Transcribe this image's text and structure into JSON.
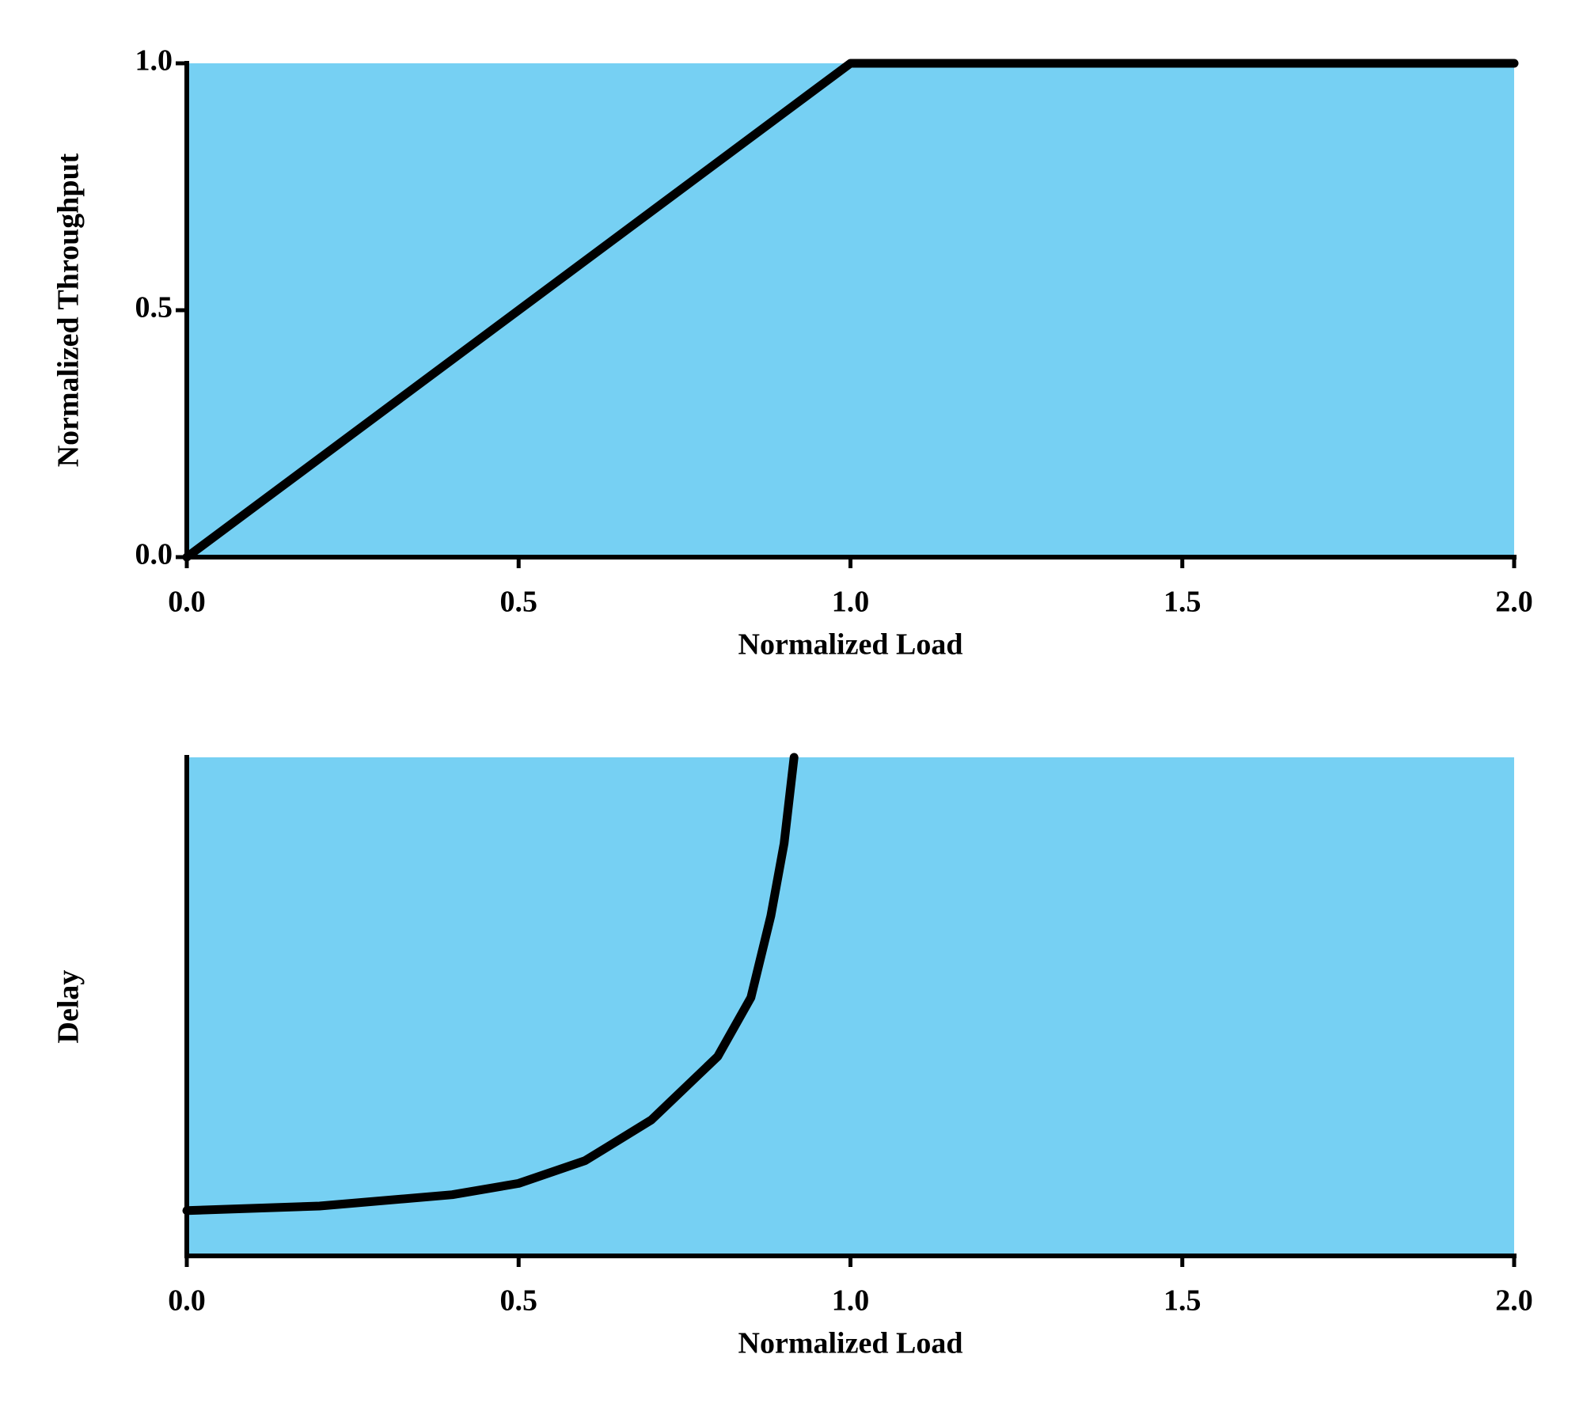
{
  "chart_data": [
    {
      "type": "line",
      "x_label": "Normalized Load",
      "y_label": "Normalized Throughput",
      "x": [
        0,
        1,
        2
      ],
      "series": [
        {
          "name": null,
          "color": "#000000",
          "values": [
            0,
            1,
            1
          ]
        }
      ],
      "xlim": [
        0,
        2
      ],
      "ylim": [
        0,
        1
      ],
      "xticks": [
        {
          "value": 0,
          "label": "0.0"
        },
        0.5,
        {
          "value": 1,
          "label": "1.0"
        },
        1.5,
        {
          "value": 2,
          "label": "2.0"
        }
      ],
      "yticks": [
        {
          "value": 0,
          "label": "0.0"
        },
        0.5,
        {
          "value": 1,
          "label": "1.0"
        }
      ],
      "plot_color": "#76d0f3"
    },
    {
      "type": "line",
      "x_label": "Normalized Load",
      "y_label": "Delay",
      "x": [
        0,
        0.2,
        0.4,
        0.5,
        0.6,
        0.7,
        0.8,
        0.85,
        0.88,
        0.9,
        0.915
      ],
      "series": [
        {
          "name": null,
          "color": "#000000",
          "values": [
            1.0,
            1.1,
            1.35,
            1.6,
            2.1,
            3.0,
            4.4,
            5.7,
            7.5,
            9.1,
            11
          ]
        }
      ],
      "xlim": [
        0,
        2
      ],
      "ylim": [
        0,
        11
      ],
      "xticks": [
        {
          "value": 0,
          "label": "0.0"
        },
        0.5,
        {
          "value": 1,
          "label": "1.0"
        },
        1.5,
        {
          "value": 2,
          "label": "2.0"
        }
      ],
      "plot_color": "#76d0f3"
    }
  ]
}
